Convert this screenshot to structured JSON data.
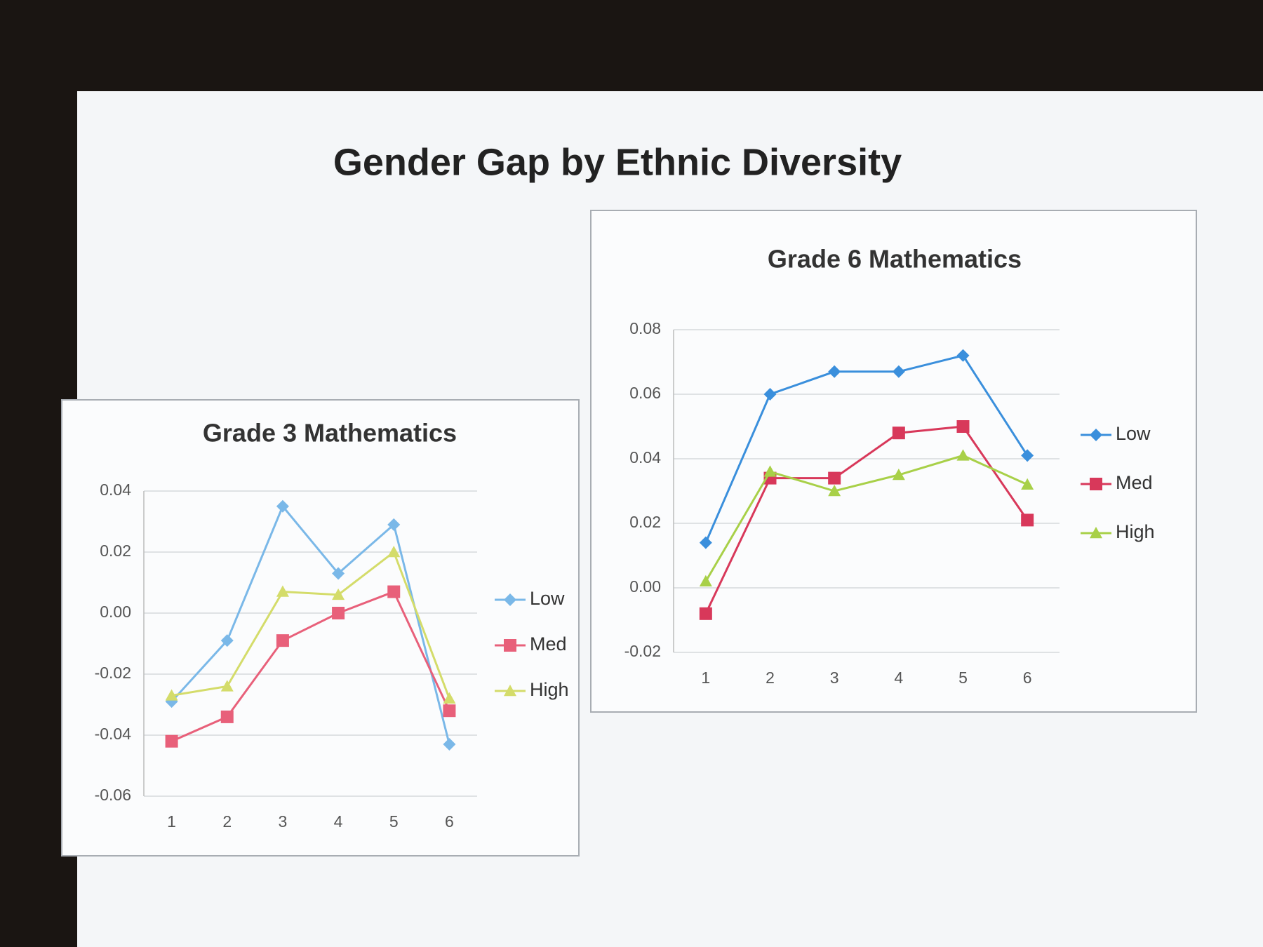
{
  "title": "Gender Gap by Ethnic Diversity",
  "chart_data": [
    {
      "type": "line",
      "title": "Grade 3 Mathematics",
      "categories": [
        "1",
        "2",
        "3",
        "4",
        "5",
        "6"
      ],
      "series": [
        {
          "name": "Low",
          "color": "#7ab8e8",
          "values": [
            -0.029,
            -0.009,
            0.035,
            0.013,
            0.029,
            -0.043
          ]
        },
        {
          "name": "Med",
          "color": "#e8607a",
          "values": [
            -0.042,
            -0.034,
            -0.009,
            0.0,
            0.007,
            -0.032
          ]
        },
        {
          "name": "High",
          "color": "#d4dc6a",
          "values": [
            -0.027,
            -0.024,
            0.007,
            0.006,
            0.02,
            -0.028
          ]
        }
      ],
      "ylim": [
        -0.06,
        0.04
      ],
      "yticks": [
        {
          "value": -0.06,
          "label": "-0.06"
        },
        {
          "value": -0.04,
          "label": "-0.04"
        },
        {
          "value": -0.02,
          "label": "-0.02"
        },
        {
          "value": 0,
          "label": "0.00"
        },
        {
          "value": 0.02,
          "label": "0.02"
        },
        {
          "value": 0.04,
          "label": "0.04"
        }
      ],
      "grid": true,
      "legend": "right"
    },
    {
      "type": "line",
      "title": "Grade 6 Mathematics",
      "categories": [
        "1",
        "2",
        "3",
        "4",
        "5",
        "6"
      ],
      "series": [
        {
          "name": "Low",
          "color": "#3a8fdc",
          "values": [
            0.014,
            0.06,
            0.067,
            0.067,
            0.072,
            0.041
          ]
        },
        {
          "name": "Med",
          "color": "#d8385a",
          "values": [
            -0.008,
            0.034,
            0.034,
            0.048,
            0.05,
            0.021
          ]
        },
        {
          "name": "High",
          "color": "#a8d048",
          "values": [
            0.002,
            0.036,
            0.03,
            0.035,
            0.041,
            0.032
          ]
        }
      ],
      "ylim": [
        -0.02,
        0.08
      ],
      "yticks": [
        {
          "value": -0.02,
          "label": "-0.02"
        },
        {
          "value": 0,
          "label": "0.00"
        },
        {
          "value": 0.02,
          "label": "0.02"
        },
        {
          "value": 0.04,
          "label": "0.04"
        },
        {
          "value": 0.06,
          "label": "0.06"
        },
        {
          "value": 0.08,
          "label": "0.08"
        }
      ],
      "grid": true,
      "legend": "right"
    }
  ]
}
